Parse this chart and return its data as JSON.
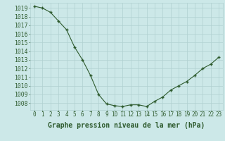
{
  "x": [
    0,
    1,
    2,
    3,
    4,
    5,
    6,
    7,
    8,
    9,
    10,
    11,
    12,
    13,
    14,
    15,
    16,
    17,
    18,
    19,
    20,
    21,
    22,
    23
  ],
  "y": [
    1019.2,
    1019.0,
    1018.5,
    1017.5,
    1016.5,
    1014.5,
    1013.0,
    1011.2,
    1009.0,
    1007.9,
    1007.7,
    1007.6,
    1007.8,
    1007.8,
    1007.6,
    1008.2,
    1008.7,
    1009.5,
    1010.0,
    1010.5,
    1011.2,
    1012.0,
    1012.5,
    1013.3
  ],
  "xlabel": "Graphe pression niveau de la mer (hPa)",
  "ylim_min": 1007.2,
  "ylim_max": 1019.6,
  "yticks": [
    1008,
    1009,
    1010,
    1011,
    1012,
    1013,
    1014,
    1015,
    1016,
    1017,
    1018,
    1019
  ],
  "line_color": "#2d5a2d",
  "marker": "+",
  "bg_color": "#cce8e8",
  "grid_color": "#b0d0d0",
  "label_color": "#2d5a2d",
  "tick_color": "#2d5a2d",
  "xlabel_fontsize": 7.0,
  "ytick_fontsize": 5.8,
  "xtick_fontsize": 5.5
}
